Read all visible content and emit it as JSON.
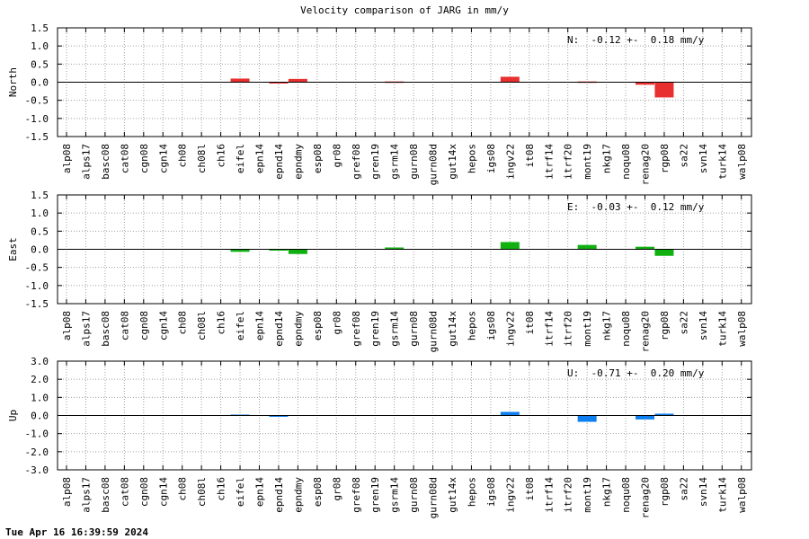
{
  "title": "Velocity comparison of JARG in mm/y",
  "timestamp": "Tue Apr 16 16:39:59 2024",
  "chart_data": [
    {
      "type": "bar",
      "ylabel": "North",
      "annotation": "N:  -0.12 +-  0.18 mm/y",
      "color": "#e83030",
      "ylim": [
        -1.5,
        1.5
      ],
      "yticks": [
        -1.5,
        -1.0,
        -0.5,
        0.0,
        0.5,
        1.0,
        1.5
      ],
      "ytick_labels": [
        "-1.5",
        "-1.0",
        "-0.5",
        "0.0",
        "0.5",
        "1.0",
        "1.5"
      ],
      "grid": true,
      "categories": [
        "alp08",
        "alps17",
        "basc08",
        "cat08",
        "cgn08",
        "cgn14",
        "ch08",
        "ch08l",
        "ch16",
        "eifel",
        "epn14",
        "epnd14",
        "epndmy",
        "esp08",
        "gr08",
        "gref08",
        "gren19",
        "gsrm14",
        "gurn08",
        "gurn08d",
        "gut14x",
        "hepos",
        "igs08",
        "ingv22",
        "it08",
        "itrf14",
        "itrf20",
        "mont19",
        "nkg17",
        "noqu08",
        "renag20",
        "rgp08",
        "sa22",
        "svn14",
        "turk14",
        "walp08"
      ],
      "values": [
        0,
        0,
        0,
        0,
        0,
        0,
        0,
        0,
        0,
        0.1,
        0,
        -0.03,
        0.09,
        0,
        0,
        0,
        0,
        0.02,
        0,
        0,
        0,
        0,
        0,
        0.15,
        0,
        0,
        0,
        0.02,
        0,
        0,
        -0.07,
        -0.42,
        0,
        0,
        0,
        0
      ]
    },
    {
      "type": "bar",
      "ylabel": "East",
      "annotation": "E:  -0.03 +-  0.12 mm/y",
      "color": "#10b010",
      "ylim": [
        -1.5,
        1.5
      ],
      "yticks": [
        -1.5,
        -1.0,
        -0.5,
        0.0,
        0.5,
        1.0,
        1.5
      ],
      "ytick_labels": [
        "-1.5",
        "-1.0",
        "-0.5",
        "0.0",
        "0.5",
        "1.0",
        "1.5"
      ],
      "grid": true,
      "categories": [
        "alp08",
        "alps17",
        "basc08",
        "cat08",
        "cgn08",
        "cgn14",
        "ch08",
        "ch08l",
        "ch16",
        "eifel",
        "epn14",
        "epnd14",
        "epndmy",
        "esp08",
        "gr08",
        "gref08",
        "gren19",
        "gsrm14",
        "gurn08",
        "gurn08d",
        "gut14x",
        "hepos",
        "igs08",
        "ingv22",
        "it08",
        "itrf14",
        "itrf20",
        "mont19",
        "nkg17",
        "noqu08",
        "renag20",
        "rgp08",
        "sa22",
        "svn14",
        "turk14",
        "walp08"
      ],
      "values": [
        0,
        0,
        0,
        0,
        0,
        0,
        0,
        0,
        0,
        -0.07,
        0,
        -0.02,
        -0.13,
        0,
        0,
        0,
        0,
        0.05,
        0,
        0,
        0,
        0,
        0,
        0.2,
        0,
        0,
        0,
        0.12,
        0,
        0,
        0.07,
        -0.18,
        0,
        0,
        0,
        0
      ]
    },
    {
      "type": "bar",
      "ylabel": "Up",
      "annotation": "U:  -0.71 +-  0.20 mm/y",
      "color": "#1080f0",
      "ylim": [
        -3.0,
        3.0
      ],
      "yticks": [
        -3.0,
        -2.0,
        -1.0,
        0.0,
        1.0,
        2.0,
        3.0
      ],
      "ytick_labels": [
        "-3.0",
        "-2.0",
        "-1.0",
        "0.0",
        "1.0",
        "2.0",
        "3.0"
      ],
      "grid": true,
      "categories": [
        "alp08",
        "alps17",
        "basc08",
        "cat08",
        "cgn08",
        "cgn14",
        "ch08",
        "ch08l",
        "ch16",
        "eifel",
        "epn14",
        "epnd14",
        "epndmy",
        "esp08",
        "gr08",
        "gref08",
        "gren19",
        "gsrm14",
        "gurn08",
        "gurn08d",
        "gut14x",
        "hepos",
        "igs08",
        "ingv22",
        "it08",
        "itrf14",
        "itrf20",
        "mont19",
        "nkg17",
        "noqu08",
        "renag20",
        "rgp08",
        "sa22",
        "svn14",
        "turk14",
        "walp08"
      ],
      "values": [
        0,
        0,
        0,
        0,
        0,
        0,
        0,
        0,
        0,
        0.05,
        0,
        -0.05,
        0,
        0,
        0,
        0,
        0,
        0,
        0,
        0,
        0,
        0,
        0,
        0.2,
        0,
        0,
        0,
        -0.35,
        0,
        0,
        -0.22,
        0.1,
        0,
        0,
        0,
        0
      ]
    }
  ]
}
